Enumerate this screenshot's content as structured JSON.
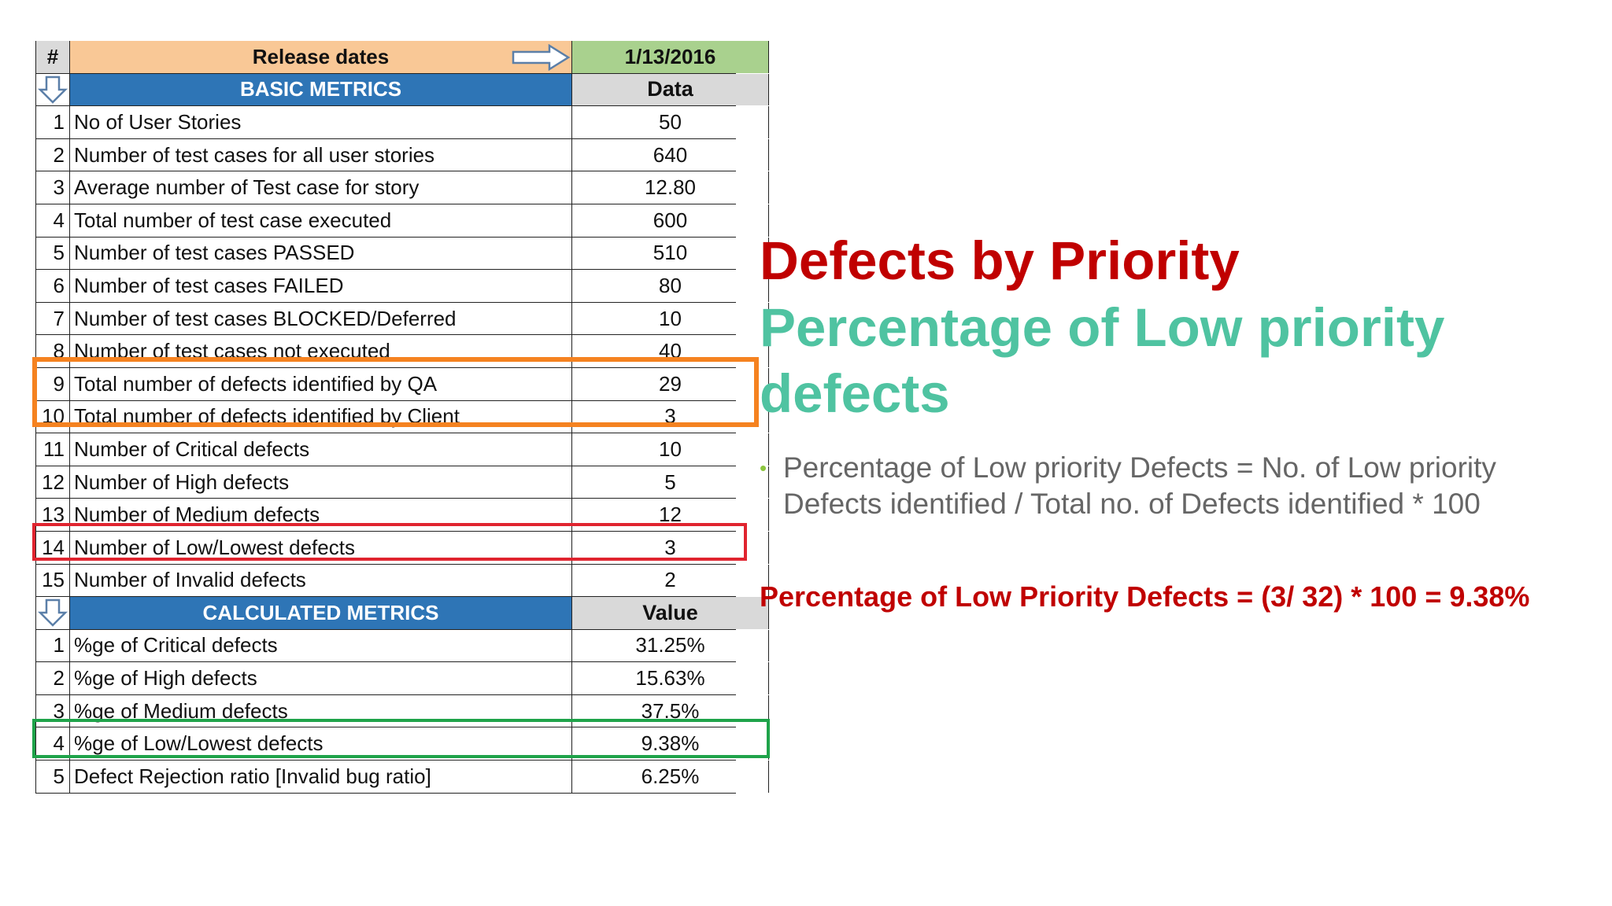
{
  "table": {
    "header": {
      "num": "#",
      "label": "Release dates",
      "date": "1/13/2016"
    },
    "basic_section": {
      "label": "BASIC METRICS",
      "value_header": "Data"
    },
    "basic_rows": [
      {
        "num": "1",
        "label": "No of User Stories",
        "value": "50"
      },
      {
        "num": "2",
        "label": "Number  of test cases for all user stories",
        "value": "640"
      },
      {
        "num": "3",
        "label": "Average number of Test case for story",
        "value": "12.80"
      },
      {
        "num": "4",
        "label": "Total number of test case executed",
        "value": "600"
      },
      {
        "num": "5",
        "label": "Number of test cases PASSED",
        "value": "510"
      },
      {
        "num": "6",
        "label": "Number of  test cases FAILED",
        "value": "80"
      },
      {
        "num": "7",
        "label": "Number of test cases BLOCKED/Deferred",
        "value": "10"
      },
      {
        "num": "8",
        "label": "Number of test cases not executed",
        "value": "40"
      },
      {
        "num": "9",
        "label": "Total number of defects identified by QA",
        "value": "29"
      },
      {
        "num": "10",
        "label": "Total number of defects identified by Client",
        "value": "3"
      },
      {
        "num": "11",
        "label": "Number of Critical defects",
        "value": "10"
      },
      {
        "num": "12",
        "label": "Number of High defects",
        "value": "5"
      },
      {
        "num": "13",
        "label": "Number of Medium defects",
        "value": "12"
      },
      {
        "num": "14",
        "label": "Number of Low/Lowest defects",
        "value": "3"
      },
      {
        "num": "15",
        "label": "Number of Invalid defects",
        "value": "2"
      }
    ],
    "calc_section": {
      "label": "CALCULATED METRICS",
      "value_header": "Value"
    },
    "calc_rows": [
      {
        "num": "1",
        "label": "%ge of Critical defects",
        "value": "31.25%"
      },
      {
        "num": "2",
        "label": "%ge of High defects",
        "value": "15.63%"
      },
      {
        "num": "3",
        "label": "%ge of Medium defects",
        "value": "37.5%"
      },
      {
        "num": "4",
        "label": "%ge of Low/Lowest defects",
        "value": "9.38%"
      },
      {
        "num": "5",
        "label": "Defect Rejection ratio [Invalid bug ratio]",
        "value": "6.25%"
      }
    ]
  },
  "slide": {
    "title": "Defects by Priority",
    "subtitle": "Percentage of Low priority defects",
    "bullet": "Percentage of Low priority Defects = No. of Low priority Defects identified / Total no. of Defects identified * 100",
    "result": "Percentage of Low Priority Defects = (3/ 32) * 100 = 9.38%"
  },
  "colors": {
    "title": "#c00000",
    "subtitle": "#4fc3a1",
    "section_header": "#2e75b6",
    "header_label_bg": "#f9c896",
    "header_date_bg": "#a9d18e",
    "highlight_orange": "#f58220",
    "highlight_red": "#e0242f",
    "highlight_green": "#1fa34a"
  },
  "icons": {
    "header_arrow": "right-arrow-icon",
    "section_arrow": "down-arrow-icon"
  }
}
